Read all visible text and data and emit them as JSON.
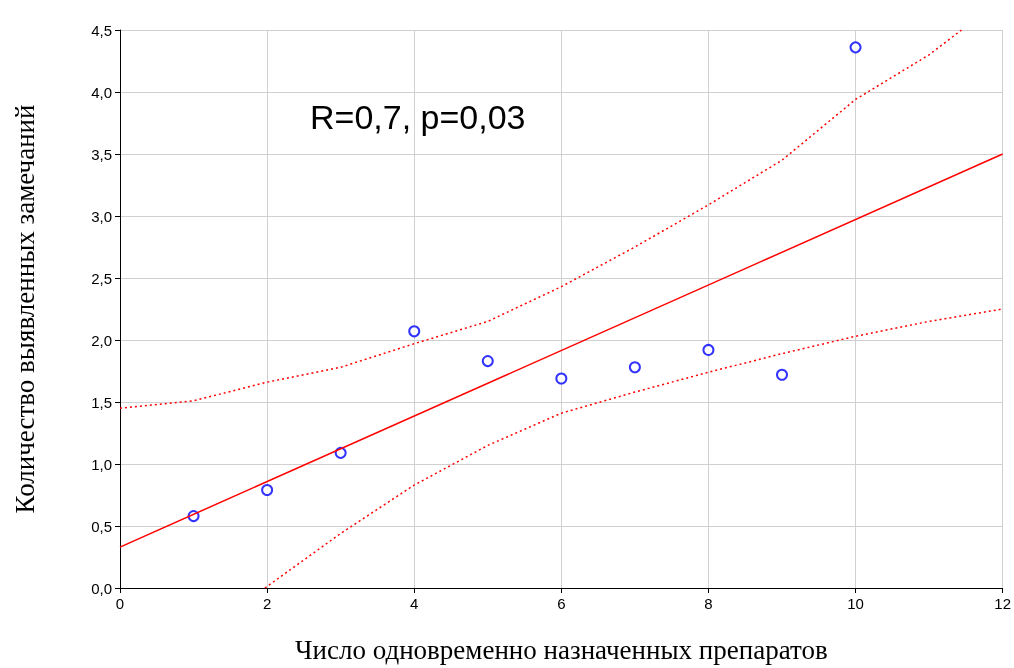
{
  "chart_data": {
    "type": "scatter",
    "xlabel": "Число одновременно назначенных препаратов",
    "ylabel": "Количество выявленных замечаний",
    "annotations": [
      "R=0,7, p=0,03"
    ],
    "xlim": [
      0,
      12
    ],
    "xticks": [
      0,
      2,
      4,
      6,
      8,
      10,
      12
    ],
    "ylim": [
      0,
      4.5
    ],
    "yticks": [
      {
        "value": 0,
        "label": "0,0"
      },
      {
        "value": 0.5,
        "label": "0,5"
      },
      {
        "value": 1,
        "label": "1,0"
      },
      {
        "value": 1.5,
        "label": "1,5"
      },
      {
        "value": 2,
        "label": "2,0"
      },
      {
        "value": 2.5,
        "label": "2,5"
      },
      {
        "value": 3,
        "label": "3,0"
      },
      {
        "value": 3.5,
        "label": "3,5"
      },
      {
        "value": 4,
        "label": "4,0"
      },
      {
        "value": 4.5,
        "label": "4,5"
      }
    ],
    "grid": true,
    "series": [
      {
        "color": "#0000ff",
        "marker": "circle",
        "x": [
          1,
          2,
          3,
          4,
          5,
          6,
          7,
          8,
          9,
          10
        ],
        "values": [
          0.58,
          0.79,
          1.09,
          2.07,
          1.83,
          1.69,
          1.78,
          1.92,
          1.72,
          4.36
        ]
      },
      {
        "type": "line",
        "color": "#ff0000",
        "marker": "none",
        "line_style": "solid",
        "x": [
          0,
          12
        ],
        "values": [
          0.33,
          3.5
        ]
      },
      {
        "type": "line",
        "color": "#ff0000",
        "marker": "none",
        "line_style": "dotted",
        "x": [
          0,
          1,
          2,
          3,
          4,
          5,
          6,
          7,
          8,
          9,
          10,
          11,
          11.44
        ],
        "values": [
          1.45,
          1.51,
          1.66,
          1.78,
          1.97,
          2.15,
          2.43,
          2.75,
          3.09,
          3.45,
          3.94,
          4.3,
          4.5
        ]
      },
      {
        "type": "line",
        "color": "#ff0000",
        "marker": "none",
        "line_style": "dotted",
        "x": [
          1.97,
          3,
          4,
          5,
          6,
          7,
          8,
          9,
          10,
          11,
          12
        ],
        "values": [
          0,
          0.44,
          0.83,
          1.15,
          1.41,
          1.58,
          1.74,
          1.89,
          2.03,
          2.15,
          2.25
        ]
      }
    ]
  }
}
